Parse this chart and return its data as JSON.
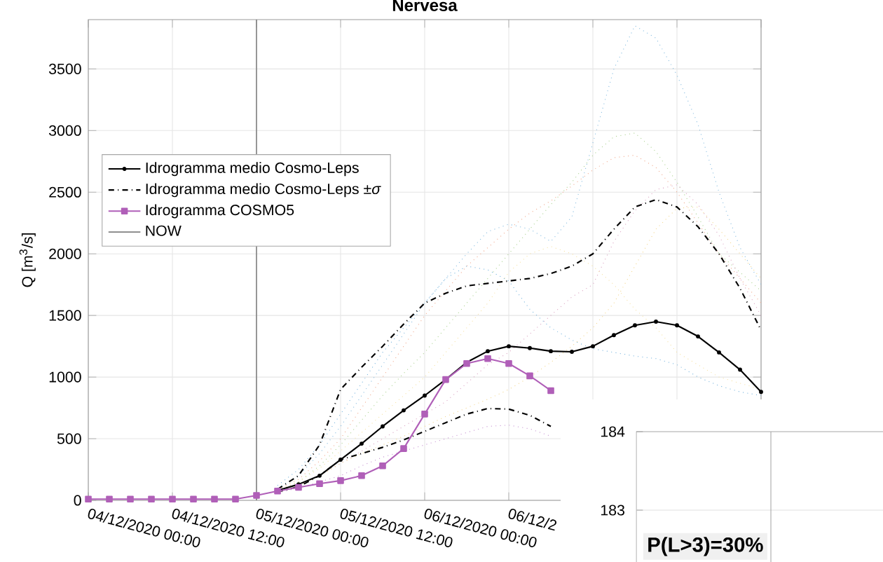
{
  "chart_data": [
    {
      "type": "line",
      "title": "Nervesa",
      "ylabel": "Q [m$^{3}$/s]",
      "x": [
        "2020-12-04T00:00",
        "2020-12-04T03:00",
        "2020-12-04T06:00",
        "2020-12-04T09:00",
        "2020-12-04T12:00",
        "2020-12-04T15:00",
        "2020-12-04T18:00",
        "2020-12-04T21:00",
        "2020-12-05T00:00",
        "2020-12-05T03:00",
        "2020-12-05T06:00",
        "2020-12-05T09:00",
        "2020-12-05T12:00",
        "2020-12-05T15:00",
        "2020-12-05T18:00",
        "2020-12-05T21:00",
        "2020-12-06T00:00",
        "2020-12-06T03:00",
        "2020-12-06T06:00",
        "2020-12-06T09:00",
        "2020-12-06T12:00",
        "2020-12-06T15:00",
        "2020-12-06T18:00",
        "2020-12-06T21:00",
        "2020-12-07T00:00",
        "2020-12-07T03:00",
        "2020-12-07T06:00",
        "2020-12-07T09:00",
        "2020-12-07T12:00",
        "2020-12-07T15:00",
        "2020-12-07T18:00",
        "2020-12-07T21:00",
        "2020-12-08T00:00"
      ],
      "series": [
        {
          "color": "#7fb8de",
          "line_style": "dotted",
          "values": [
            null,
            null,
            null,
            null,
            null,
            null,
            null,
            null,
            null,
            100,
            200,
            380,
            600,
            850,
            1100,
            1350,
            1600,
            1800,
            2000,
            2180,
            2240,
            2200,
            2100,
            2300,
            2900,
            3500,
            3850,
            3750,
            3450,
            3050,
            2500,
            2050,
            1750
          ]
        },
        {
          "color": "#a8d08d",
          "line_style": "dotted",
          "values": [
            null,
            null,
            null,
            null,
            null,
            null,
            null,
            null,
            null,
            80,
            150,
            280,
            450,
            650,
            850,
            1030,
            1200,
            1400,
            1600,
            1800,
            2000,
            2200,
            2400,
            2580,
            2800,
            2950,
            2980,
            2830,
            2580,
            2300,
            2000,
            1850,
            1700
          ]
        },
        {
          "color": "#f0a78a",
          "line_style": "dotted",
          "values": [
            null,
            null,
            null,
            null,
            null,
            null,
            null,
            null,
            null,
            90,
            170,
            320,
            500,
            750,
            1000,
            1250,
            1500,
            1700,
            1900,
            2050,
            2200,
            2330,
            2430,
            2550,
            2680,
            2780,
            2800,
            2700,
            2500,
            2250,
            2000,
            1800,
            1600
          ]
        },
        {
          "color": "#d9a0c0",
          "line_style": "dotted",
          "values": [
            null,
            null,
            null,
            null,
            null,
            null,
            null,
            null,
            null,
            70,
            120,
            200,
            300,
            400,
            500,
            600,
            700,
            800,
            950,
            1100,
            1200,
            1350,
            1500,
            1650,
            1750,
            2100,
            2350,
            2520,
            2560,
            2400,
            2150,
            1800,
            1500
          ]
        },
        {
          "color": "#6fb0dc",
          "line_style": "dotted",
          "values": [
            null,
            null,
            null,
            null,
            null,
            null,
            null,
            null,
            null,
            120,
            250,
            450,
            700,
            950,
            1200,
            1400,
            1600,
            1800,
            1900,
            1870,
            1780,
            1550,
            1400,
            1300,
            1230,
            1200,
            1170,
            1150,
            1100,
            1000,
            930,
            880,
            850
          ]
        },
        {
          "color": "#f2d58a",
          "line_style": "dotted",
          "values": [
            null,
            null,
            null,
            null,
            null,
            null,
            null,
            null,
            null,
            70,
            120,
            200,
            300,
            380,
            450,
            520,
            600,
            680,
            750,
            820,
            900,
            1000,
            1120,
            1250,
            1400,
            1600,
            1900,
            2200,
            2370,
            2380,
            2200,
            2000,
            1800
          ]
        },
        {
          "color": "#c58fd0",
          "line_style": "dotted",
          "values": [
            null,
            null,
            null,
            null,
            null,
            null,
            null,
            null,
            null,
            60,
            100,
            150,
            200,
            280,
            350,
            400,
            450,
            500,
            550,
            600,
            610,
            580,
            520,
            null,
            null,
            null,
            null,
            null,
            null,
            null,
            null,
            null,
            null
          ]
        },
        {
          "color": "#f5e0a0",
          "line_style": "dotted",
          "values": [
            null,
            null,
            null,
            null,
            null,
            null,
            null,
            null,
            null,
            80,
            150,
            260,
            400,
            550,
            700,
            850,
            1000,
            1200,
            1400,
            1600,
            1850,
            2000,
            2060,
            2000,
            1900,
            1750,
            1550,
            1400,
            1200,
            1100,
            1000,
            950,
            900
          ]
        },
        {
          "name": "Idrogramma medio Cosmo-Leps",
          "color": "#000000",
          "line_style": "solid",
          "marker": "circle",
          "values": [
            null,
            null,
            null,
            null,
            null,
            null,
            null,
            null,
            null,
            80,
            130,
            200,
            330,
            460,
            600,
            730,
            850,
            980,
            1120,
            1210,
            1250,
            1235,
            1210,
            1205,
            1250,
            1340,
            1420,
            1450,
            1420,
            1330,
            1200,
            1060,
            880
          ]
        },
        {
          "name": "Idrogramma medio Cosmo-Leps ±*σ*",
          "color": "#000000",
          "line_style": "dashdot",
          "values": [
            null,
            null,
            null,
            null,
            null,
            null,
            null,
            null,
            null,
            90,
            200,
            450,
            900,
            1080,
            1250,
            1430,
            1600,
            1680,
            1740,
            1760,
            1780,
            1800,
            1840,
            1900,
            2000,
            2200,
            2380,
            2440,
            2380,
            2220,
            2000,
            1720,
            1380
          ]
        },
        {
          "color": "#000000",
          "line_style": "dashdot",
          "values": [
            null,
            null,
            null,
            null,
            null,
            null,
            null,
            null,
            null,
            70,
            110,
            200,
            330,
            380,
            430,
            490,
            560,
            630,
            700,
            745,
            740,
            690,
            600,
            null,
            null,
            null,
            null,
            null,
            null,
            null,
            null,
            null,
            null
          ]
        },
        {
          "name": "Idrogramma COSMO5",
          "color": "#b05fb8",
          "line_style": "solid",
          "marker": "square",
          "values": [
            10,
            10,
            10,
            10,
            10,
            10,
            10,
            10,
            40,
            75,
            105,
            135,
            160,
            200,
            280,
            420,
            700,
            980,
            1110,
            1150,
            1110,
            1010,
            890,
            null,
            null,
            null,
            null,
            null,
            null,
            null,
            null,
            null,
            null
          ]
        },
        {
          "name": "NOW",
          "color": "#808080",
          "line_style": "solid",
          "x": [
            "2020-12-05T00:00",
            "2020-12-05T00:00"
          ],
          "values": [
            0,
            3900
          ]
        }
      ],
      "xlim": [
        "2020-12-04T00:00",
        "2020-12-08T00:00"
      ],
      "xticks": [
        {
          "value": "2020-12-04T00:00",
          "label": "04/12/2020 00:00"
        },
        {
          "value": "2020-12-04T12:00",
          "label": "04/12/2020 12:00"
        },
        {
          "value": "2020-12-05T00:00",
          "label": "05/12/2020 00:00"
        },
        {
          "value": "2020-12-05T12:00",
          "label": "05/12/2020 12:00"
        },
        {
          "value": "2020-12-06T00:00",
          "label": "06/12/2020 00:00"
        },
        {
          "value": "2020-12-06T12:00",
          "label": "06/12/2"
        },
        {
          "value": "2020-12-07T00:00",
          "label": null
        },
        {
          "value": "2020-12-07T12:00",
          "label": null
        },
        {
          "value": "2020-12-08T00:00",
          "label": null
        }
      ],
      "ylim": [
        0,
        3900
      ],
      "yticks": [
        0,
        500,
        1000,
        1500,
        2000,
        2500,
        3000,
        3500
      ],
      "grid": true,
      "legend": "top left",
      "marker": "none"
    },
    {
      "type": "other",
      "annotations": [
        "184",
        "183",
        "P(L>3)=30%"
      ]
    }
  ]
}
